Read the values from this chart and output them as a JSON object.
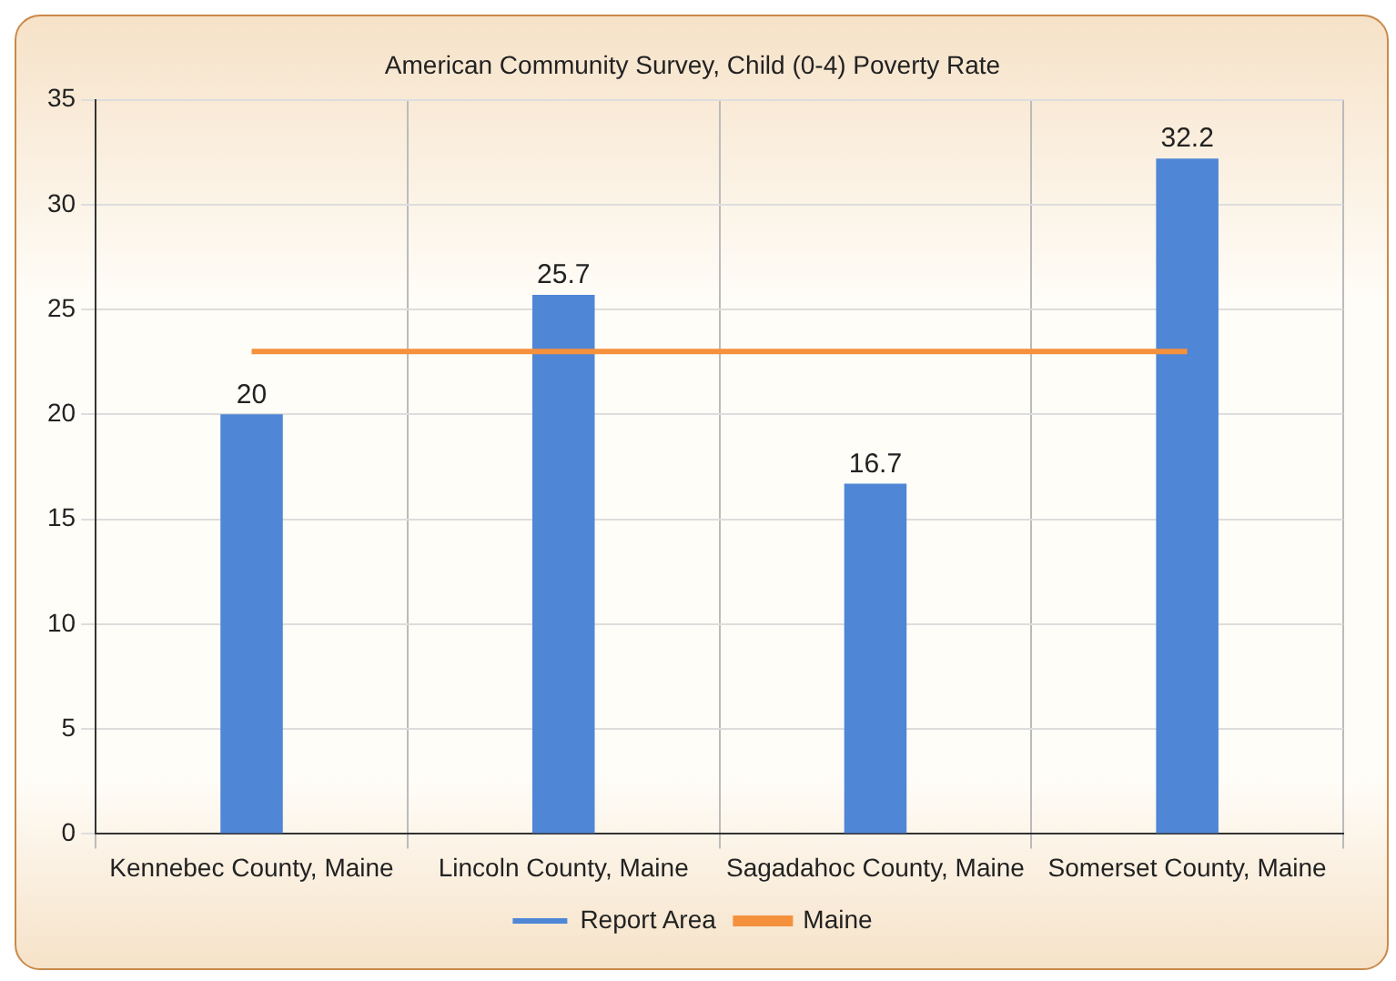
{
  "chart_data": {
    "type": "bar",
    "title": "American Community Survey, Child (0-4) Poverty Rate",
    "categories": [
      "Kennebec County, Maine",
      "Lincoln County, Maine",
      "Sagadahoc County, Maine",
      "Somerset County, Maine"
    ],
    "series": [
      {
        "name": "Report Area",
        "color": "#4f86d6",
        "values": [
          20,
          25.7,
          16.7,
          32.2
        ],
        "value_labels": [
          "20",
          "25.7",
          "16.7",
          "32.2"
        ]
      },
      {
        "name": "Maine",
        "type": "line",
        "color": "#f5913c",
        "values": [
          23,
          23,
          23,
          23
        ]
      }
    ],
    "ylim": [
      0,
      35
    ],
    "yticks": [
      0,
      5,
      10,
      15,
      20,
      25,
      30,
      35
    ],
    "grid": true,
    "legend": "bottom"
  }
}
